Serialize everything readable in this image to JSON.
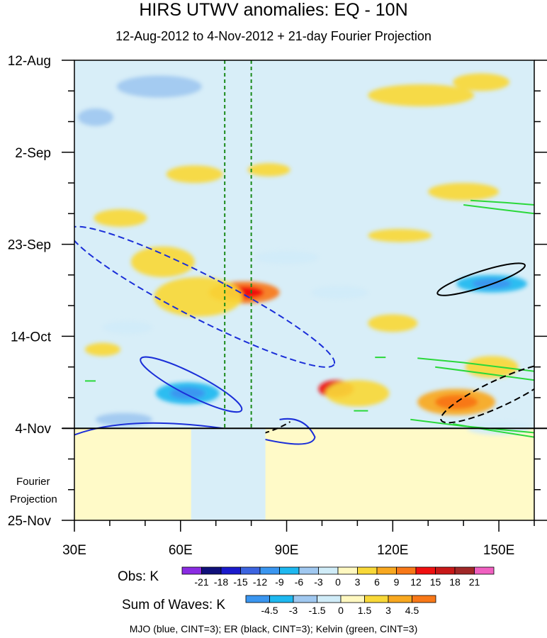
{
  "chart_data": {
    "type": "heatmap",
    "title": "HIRS UTWV anomalies: EQ - 10N",
    "subtitle": "12-Aug-2012 to 4-Nov-2012 + 21-day Fourier Projection",
    "xlabel": "",
    "ylabel": "",
    "x_range": [
      30,
      160
    ],
    "x_ticks": [
      30,
      60,
      90,
      120,
      150
    ],
    "x_tick_labels": [
      "30E",
      "60E",
      "90E",
      "120E",
      "150E"
    ],
    "y_dates": [
      "12-Aug",
      "2-Sep",
      "23-Sep",
      "14-Oct",
      "4-Nov",
      "25-Nov"
    ],
    "y_days": [
      0,
      21,
      42,
      63,
      84,
      105
    ],
    "obs_end_day": 84,
    "projection_label": [
      "Fourier",
      "Projection"
    ],
    "vertical_lines_lon": [
      72.5,
      80
    ],
    "obs_legend": {
      "label": "Obs: K",
      "levels": [
        "-21",
        "-18",
        "-15",
        "-12",
        "-9",
        "-6",
        "-3",
        "0",
        "3",
        "6",
        "9",
        "12",
        "15",
        "18",
        "21"
      ],
      "colors": [
        "#8a2be2",
        "#10107a",
        "#1a1acc",
        "#3c64e0",
        "#3a96f0",
        "#1eb8f0",
        "#a0c8f0",
        "#d0ecf8",
        "#fff8c0",
        "#f8d838",
        "#f8a820",
        "#f87818",
        "#f01010",
        "#c81818",
        "#a02828",
        "#f060c0"
      ]
    },
    "waves_legend": {
      "label": "Sum of Waves: K",
      "levels": [
        "-4.5",
        "-3",
        "-1.5",
        "0",
        "1.5",
        "3",
        "4.5"
      ],
      "colors": [
        "#3a96f0",
        "#1eb8f0",
        "#a0c8f0",
        "#d0ecf8",
        "#fff8c0",
        "#f8d838",
        "#f8a820",
        "#f87818"
      ]
    },
    "anomaly_features": [
      {
        "lon": 78,
        "day": 53,
        "value": 9,
        "width": 20,
        "height": 5
      },
      {
        "lon": 65,
        "day": 54,
        "value": 5,
        "width": 25,
        "height": 9
      },
      {
        "lon": 55,
        "day": 46,
        "value": 4,
        "width": 18,
        "height": 7
      },
      {
        "lon": 104,
        "day": 75,
        "value": 12,
        "width": 10,
        "height": 4
      },
      {
        "lon": 110,
        "day": 76,
        "value": 5,
        "width": 18,
        "height": 6
      },
      {
        "lon": 138,
        "day": 78,
        "value": 8,
        "width": 22,
        "height": 6
      },
      {
        "lon": 148,
        "day": 70,
        "value": 5,
        "width": 15,
        "height": 5
      },
      {
        "lon": 128,
        "day": 8,
        "value": 5,
        "width": 30,
        "height": 5
      },
      {
        "lon": 145,
        "day": 5,
        "value": 4,
        "width": 16,
        "height": 4
      },
      {
        "lon": 64,
        "day": 26,
        "value": 4,
        "width": 16,
        "height": 4
      },
      {
        "lon": 85,
        "day": 25,
        "value": 4,
        "width": 12,
        "height": 3
      },
      {
        "lon": 140,
        "day": 30,
        "value": 4,
        "width": 20,
        "height": 4
      },
      {
        "lon": 122,
        "day": 40,
        "value": 4,
        "width": 18,
        "height": 3
      },
      {
        "lon": 43,
        "day": 36,
        "value": 3,
        "width": 15,
        "height": 4
      },
      {
        "lon": 120,
        "day": 60,
        "value": 3,
        "width": 14,
        "height": 4
      },
      {
        "lon": 38,
        "day": 66,
        "value": 3,
        "width": 10,
        "height": 3
      },
      {
        "lon": 62,
        "day": 76,
        "value": -7,
        "width": 18,
        "height": 5
      },
      {
        "lon": 44,
        "day": 82,
        "value": -5,
        "width": 16,
        "height": 3
      },
      {
        "lon": 54,
        "day": 6,
        "value": -4,
        "width": 24,
        "height": 5
      },
      {
        "lon": 36,
        "day": 13,
        "value": -4,
        "width": 10,
        "height": 4
      },
      {
        "lon": 148,
        "day": 51,
        "value": -7,
        "width": 20,
        "height": 4
      },
      {
        "lon": 90,
        "day": 45,
        "value": -3,
        "width": 18,
        "height": 3
      },
      {
        "lon": 45,
        "day": 61,
        "value": -3,
        "width": 14,
        "height": 3
      },
      {
        "lon": 105,
        "day": 53,
        "value": -3,
        "width": 16,
        "height": 3
      },
      {
        "lon": 150,
        "day": 84,
        "value": -3,
        "width": 18,
        "height": 3
      }
    ],
    "wave_contours": [
      {
        "wave": "MJO",
        "color": "#1a2ed8",
        "dashed": true,
        "center_lon": 66,
        "center_day": 54,
        "semi_major_lon": 42,
        "semi_minor_day": 5,
        "tilt_deg": 27
      },
      {
        "wave": "MJO",
        "color": "#1a2ed8",
        "dashed": false,
        "center_lon": 63,
        "center_day": 74,
        "semi_major_lon": 16,
        "semi_minor_day": 2.5,
        "tilt_deg": 27
      },
      {
        "wave": "ER",
        "color": "#000000",
        "dashed": false,
        "center_lon": 145,
        "center_day": 50,
        "semi_major_lon": 13,
        "semi_minor_day": 1.8,
        "tilt_deg": -18
      },
      {
        "wave": "ER",
        "color": "#000000",
        "dashed": true,
        "center_lon": 150,
        "center_day": 76,
        "semi_major_lon": 18,
        "semi_minor_day": 3,
        "tilt_deg": -25
      }
    ],
    "footnote": "MJO (blue, CINT=3); ER (black, CINT=3); Kelvin (green, CINT=3)"
  }
}
